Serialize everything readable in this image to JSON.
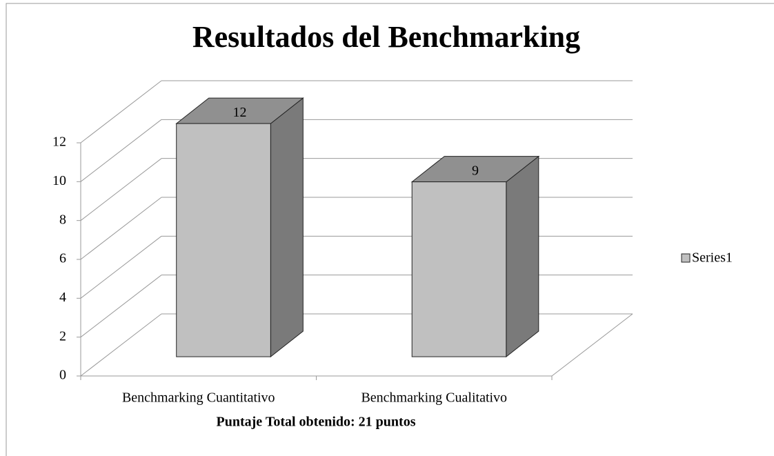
{
  "chart_data": {
    "type": "bar3d",
    "title": "Resultados del Benchmarking",
    "x_label": "Puntaje Total obtenido: 21 puntos",
    "categories": [
      "Benchmarking Cuantitativo",
      "Benchmarking Cualitativo"
    ],
    "series": [
      {
        "name": "Series1",
        "color": "#c0c0c0",
        "values": [
          12,
          9
        ]
      }
    ],
    "ylim": [
      0,
      12
    ],
    "yticks": [
      0,
      2,
      4,
      6,
      8,
      10,
      12
    ],
    "grid": true,
    "legend": "right"
  }
}
